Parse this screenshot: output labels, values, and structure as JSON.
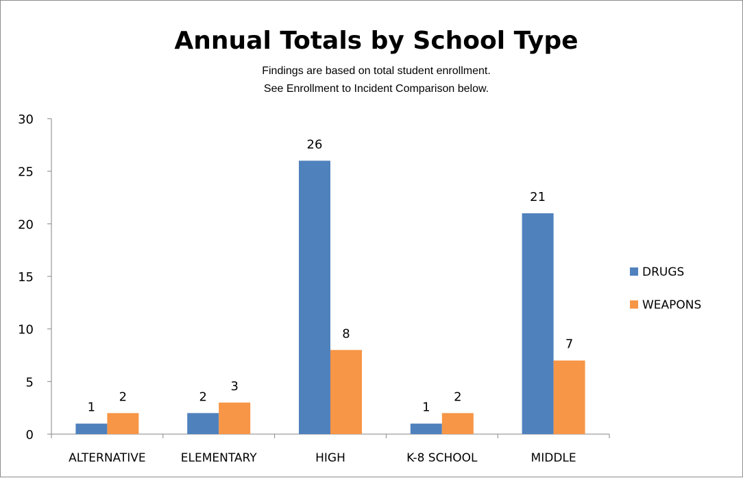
{
  "chart_data": {
    "type": "bar",
    "title": "Annual Totals by School Type",
    "subtitle_lines": [
      "Findings are based on total student enrollment.",
      "See Enrollment to Incident Comparison below."
    ],
    "categories": [
      "ALTERNATIVE",
      "ELEMENTARY",
      "HIGH",
      "K-8 SCHOOL",
      "MIDDLE"
    ],
    "series": [
      {
        "name": "DRUGS",
        "values": [
          1,
          2,
          26,
          1,
          21
        ],
        "color": "#4f81bd"
      },
      {
        "name": "WEAPONS",
        "values": [
          2,
          3,
          8,
          2,
          7
        ],
        "color": "#f79646"
      }
    ],
    "ylim": [
      0,
      30
    ],
    "yticks": [
      0,
      5,
      10,
      15,
      20,
      25,
      30
    ],
    "data_labels": true,
    "grid": false,
    "legend_position": "right"
  }
}
